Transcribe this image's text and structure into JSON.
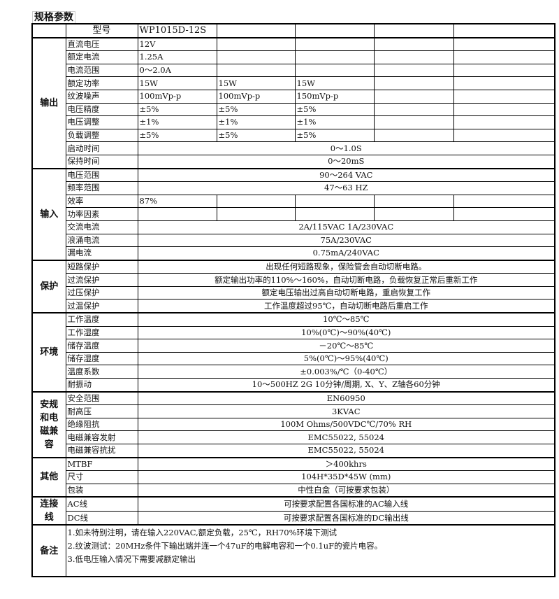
{
  "title": "规格参数",
  "header": {
    "label": "型号",
    "model": "WP1015D-12S"
  },
  "groups": [
    {
      "name": "输出",
      "rows": [
        {
          "label": "直流电压",
          "cells": [
            "12V",
            "",
            "",
            "",
            ""
          ]
        },
        {
          "label": "额定电流",
          "cells": [
            "1.25A",
            "",
            "",
            "",
            ""
          ]
        },
        {
          "label": "电流范围",
          "cells": [
            "0～2.0A",
            "",
            "",
            "",
            ""
          ]
        },
        {
          "label": "额定功率",
          "cells": [
            "15W",
            "15W",
            "15W",
            "",
            ""
          ]
        },
        {
          "label": "纹波噪声",
          "cells": [
            "100mVp-p",
            "100mVp-p",
            "150mVp-p",
            "",
            ""
          ]
        },
        {
          "label": "电压精度",
          "cells": [
            "±5%",
            "±5%",
            "±5%",
            "",
            ""
          ]
        },
        {
          "label": "电压调整",
          "cells": [
            "±1%",
            "±1%",
            "±1%",
            "",
            ""
          ]
        },
        {
          "label": "负载调整",
          "cells": [
            "±5%",
            "±5%",
            "±5%",
            "",
            ""
          ]
        },
        {
          "label": "启动时间",
          "span": "0～1.0S"
        },
        {
          "label": "保持时间",
          "span": "0～20mS"
        }
      ]
    },
    {
      "name": "输入",
      "rows": [
        {
          "label": "电压范围",
          "span": "90～264 VAC"
        },
        {
          "label": "频率范围",
          "span": "47～63 HZ"
        },
        {
          "label": "效率",
          "cells": [
            "87%",
            "",
            "",
            "",
            ""
          ]
        },
        {
          "label": "功率因素",
          "cells": [
            "",
            "",
            "",
            "",
            ""
          ]
        },
        {
          "label": "交流电流",
          "span": "2A/115VAC  1A/230VAC"
        },
        {
          "label": "浪涌电流",
          "span": "75A/230VAC"
        },
        {
          "label": "漏电流",
          "span": "0.75mA/240VAC"
        }
      ]
    },
    {
      "name": "保护",
      "rows": [
        {
          "label": "短路保护",
          "span": "出现任何短路现象，保险管会自动切断电路。"
        },
        {
          "label": "过流保护",
          "span": "额定输出功率的110%～160%，自动切断电路，负载恢复正常后重新工作"
        },
        {
          "label": "过压保护",
          "span": "额定电压输出过高自动切断电路，重启恢复工作"
        },
        {
          "label": "过温保护",
          "span": "工作温度超过95℃，自动切断电路后重启工作"
        }
      ]
    },
    {
      "name": "环境",
      "rows": [
        {
          "label": "工作温度",
          "span": "10℃～85℃"
        },
        {
          "label": "工作湿度",
          "span": "10%(0℃)～90%(40℃)"
        },
        {
          "label": "储存温度",
          "span": "－20℃～85℃"
        },
        {
          "label": "储存湿度",
          "span": "5%(0℃)～95%(40℃)"
        },
        {
          "label": "温度系数",
          "span": "±0.003%/℃（0-40℃）"
        },
        {
          "label": "耐振动",
          "span": "10～500HZ 2G 10分钟/周期, X、Y、Z轴各60分钟"
        }
      ]
    },
    {
      "name": "安规和电磁兼容",
      "rows": [
        {
          "label": "安全范围",
          "span": "EN60950"
        },
        {
          "label": "耐高压",
          "span": "3KVAC"
        },
        {
          "label": "绝缘阻抗",
          "span": "100M Ohms/500VDC℃/70% RH"
        },
        {
          "label": "电磁兼容发射",
          "span": "EMC55022, 55024"
        },
        {
          "label": "电磁兼容抗扰",
          "span": "EMC55022, 55024"
        }
      ]
    },
    {
      "name": "其他",
      "rows": [
        {
          "label": "MTBF",
          "span": "＞400khrs"
        },
        {
          "label": "尺寸",
          "span": "104H*35D*45W (mm)"
        },
        {
          "label": "包装",
          "span": "中性白盒（可按要求包装）"
        }
      ]
    },
    {
      "name": "连接线",
      "rows": [
        {
          "label": "AC线",
          "span": "可按要求配置各国标准的AC输入线"
        },
        {
          "label": "DC线",
          "span": "可按要求配置各国标准的DC输出线"
        }
      ]
    }
  ],
  "notes": {
    "name": "备注",
    "lines": [
      "1.如未特别注明，请在输入220VAC,额定负载，25℃，RH70%环境下测试",
      "2.纹波测试：20MHz条件下输出端并连一个47uF的电解电容和一个0.1uF的瓷片电容。",
      "3.低电压输入情况下需要减额定输出"
    ]
  }
}
